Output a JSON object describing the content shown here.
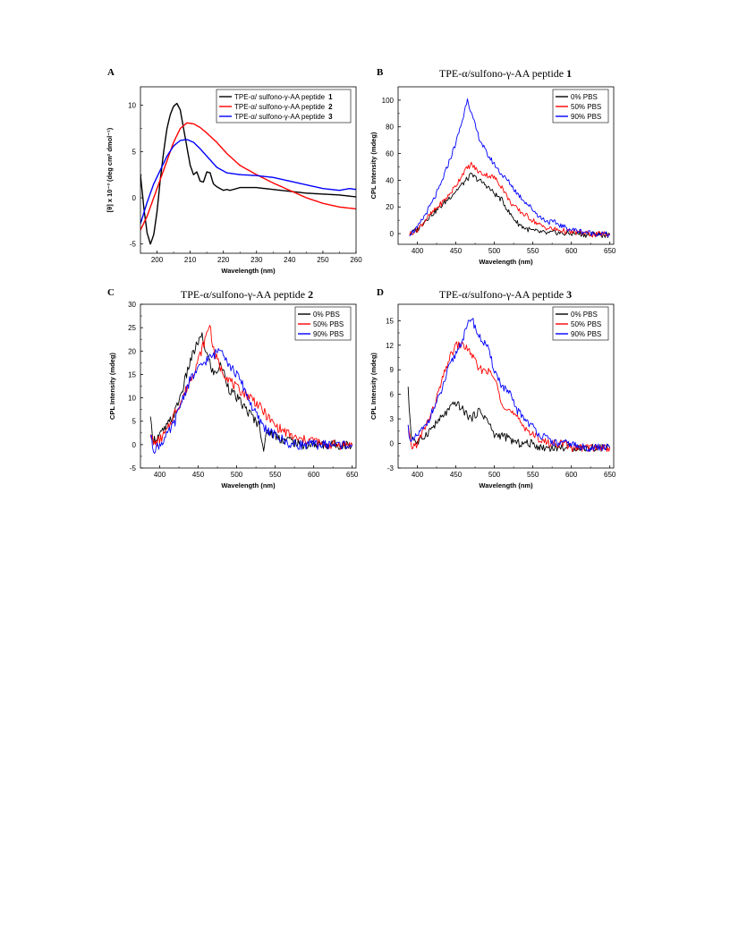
{
  "colors": {
    "black": "#000000",
    "red": "#ff0000",
    "blue": "#0000ff"
  },
  "chart_data": [
    {
      "panel": "A",
      "type": "line",
      "title": "",
      "xlabel": "Wavelength (nm)",
      "ylabel": "[θ] x 10⁻³ (deg cm² dmol⁻¹)",
      "xlim": [
        195,
        260
      ],
      "ylim": [
        -6,
        12
      ],
      "xticks": [
        200,
        210,
        220,
        230,
        240,
        250,
        260
      ],
      "yticks": [
        -5,
        0,
        5,
        10
      ],
      "legend_position": "top-right",
      "series": [
        {
          "name": "TPE-α/ sulfono-γ-AA peptide",
          "name_num": "1",
          "color": "#000000",
          "x": [
            195,
            196,
            197,
            198,
            199,
            200,
            201,
            202,
            203,
            204,
            205,
            206,
            207,
            208,
            209,
            210,
            211,
            212,
            213,
            214,
            215,
            216,
            217,
            218,
            219,
            220,
            221,
            222,
            225,
            230,
            235,
            240,
            245,
            250,
            255,
            260
          ],
          "y": [
            2.5,
            -1,
            -3.8,
            -5,
            -4,
            -1.5,
            2,
            5,
            7.5,
            9,
            9.9,
            10.2,
            9.5,
            7.5,
            5.5,
            3.5,
            2.5,
            2.8,
            1.8,
            1.7,
            2.8,
            2.7,
            1.5,
            1.2,
            1.0,
            0.8,
            0.9,
            0.8,
            1.1,
            1.1,
            0.9,
            0.7,
            0.5,
            0.4,
            0.3,
            0.1
          ]
        },
        {
          "name": "TPE-α/ sulfono-γ-AA peptide",
          "name_num": "2",
          "color": "#ff0000",
          "x": [
            195,
            197,
            199,
            201,
            203,
            205,
            207,
            209,
            211,
            213,
            215,
            218,
            221,
            225,
            230,
            235,
            240,
            245,
            250,
            255,
            260
          ],
          "y": [
            -3.5,
            -2,
            0,
            2,
            4,
            6,
            7.5,
            8.1,
            8.0,
            7.6,
            7.0,
            6.0,
            4.8,
            3.5,
            2.5,
            1.6,
            0.8,
            0,
            -0.6,
            -1.0,
            -1.2
          ]
        },
        {
          "name": "TPE-α/ sulfono-γ-AA peptide",
          "name_num": "3",
          "color": "#0000ff",
          "x": [
            195,
            197,
            199,
            201,
            203,
            205,
            207,
            209,
            211,
            213,
            215,
            218,
            221,
            225,
            230,
            235,
            240,
            245,
            250,
            255,
            258,
            260
          ],
          "y": [
            -2.8,
            -0.5,
            1.5,
            3,
            4.5,
            5.6,
            6.2,
            6.3,
            6.0,
            5.3,
            4.5,
            3.3,
            2.7,
            2.5,
            2.4,
            2.2,
            1.8,
            1.4,
            1.0,
            0.8,
            1.0,
            0.9
          ]
        }
      ]
    },
    {
      "panel": "B",
      "type": "line",
      "title": "TPE-α/sulfono-γ-AA peptide",
      "title_num": "1",
      "xlabel": "Wavelength (nm)",
      "ylabel": "CPL Intensity (mdeg)",
      "xlim": [
        375,
        655
      ],
      "ylim": [
        -8,
        110
      ],
      "xticks": [
        400,
        450,
        500,
        550,
        600,
        650
      ],
      "yticks": [
        0,
        20,
        40,
        60,
        80,
        100
      ],
      "legend_position": "top-right",
      "series": [
        {
          "name": "0% PBS",
          "color": "#000000",
          "x": [
            390,
            400,
            410,
            420,
            430,
            440,
            450,
            460,
            470,
            480,
            490,
            500,
            510,
            520,
            530,
            540,
            550,
            560,
            570,
            580,
            590,
            600,
            610,
            620,
            630,
            640,
            650
          ],
          "y": [
            0,
            3,
            10,
            15,
            20,
            26,
            32,
            38,
            44,
            40,
            36,
            30,
            25,
            15,
            8,
            4,
            2,
            1,
            0,
            1,
            0,
            0,
            0,
            -1,
            0,
            -1,
            -1
          ]
        },
        {
          "name": "50% PBS",
          "color": "#ff0000",
          "x": [
            390,
            400,
            410,
            420,
            430,
            440,
            450,
            460,
            470,
            480,
            490,
            500,
            510,
            520,
            530,
            540,
            550,
            560,
            570,
            580,
            590,
            600,
            610,
            620,
            630,
            640,
            650
          ],
          "y": [
            0,
            3,
            10,
            16,
            22,
            28,
            36,
            46,
            52,
            46,
            44,
            42,
            35,
            24,
            18,
            14,
            10,
            6,
            4,
            3,
            2,
            1,
            1,
            0,
            -1,
            0,
            -1
          ]
        },
        {
          "name": "90% PBS",
          "color": "#0000ff",
          "x": [
            390,
            400,
            410,
            420,
            430,
            440,
            450,
            460,
            465,
            470,
            480,
            490,
            500,
            510,
            520,
            530,
            540,
            550,
            560,
            570,
            580,
            590,
            600,
            610,
            620,
            630,
            640,
            650
          ],
          "y": [
            0,
            4,
            14,
            24,
            36,
            52,
            68,
            88,
            102,
            90,
            72,
            60,
            52,
            44,
            38,
            30,
            24,
            18,
            12,
            9,
            8,
            5,
            3,
            2,
            1,
            0,
            0,
            -1
          ]
        }
      ]
    },
    {
      "panel": "C",
      "type": "line",
      "title": "TPE-α/sulfono-γ-AA peptide",
      "title_num": "2",
      "xlabel": "Wavelength (nm)",
      "ylabel": "CPL Intensity (mdeg)",
      "xlim": [
        375,
        655
      ],
      "ylim": [
        -5,
        30
      ],
      "xticks": [
        400,
        450,
        500,
        550,
        600,
        650
      ],
      "yticks": [
        -5,
        0,
        5,
        10,
        15,
        20,
        25,
        30
      ],
      "legend_position": "top-right",
      "series": [
        {
          "name": "0% PBS",
          "color": "#000000",
          "x": [
            388,
            392,
            400,
            410,
            420,
            430,
            440,
            450,
            455,
            460,
            470,
            480,
            490,
            500,
            510,
            520,
            530,
            535,
            540,
            550,
            560,
            570,
            580,
            590,
            600,
            610,
            620,
            630,
            640,
            650
          ],
          "y": [
            5,
            1,
            2,
            4,
            7,
            12,
            18,
            22,
            23,
            20,
            15,
            17,
            12,
            10,
            8,
            6,
            4,
            -1,
            3,
            2,
            1,
            1,
            0,
            0,
            0,
            0,
            0,
            0,
            0,
            0
          ]
        },
        {
          "name": "50% PBS",
          "color": "#ff0000",
          "x": [
            388,
            392,
            400,
            410,
            420,
            430,
            440,
            450,
            460,
            465,
            470,
            480,
            490,
            500,
            510,
            520,
            530,
            540,
            550,
            560,
            570,
            580,
            590,
            600,
            610,
            620,
            630,
            640,
            650
          ],
          "y": [
            3,
            0,
            1,
            3,
            7,
            10,
            14,
            18,
            23,
            26,
            20,
            16,
            14,
            12,
            11,
            10,
            8,
            6,
            4,
            3,
            2,
            1,
            1,
            1,
            0,
            0,
            0,
            0,
            0
          ]
        },
        {
          "name": "90% PBS",
          "color": "#0000ff",
          "x": [
            388,
            392,
            400,
            410,
            420,
            430,
            440,
            450,
            460,
            470,
            480,
            490,
            500,
            510,
            520,
            530,
            540,
            550,
            560,
            570,
            580,
            590,
            600,
            610,
            620,
            630,
            640,
            650
          ],
          "y": [
            2,
            -1,
            0,
            2,
            5,
            10,
            14,
            16,
            18,
            19,
            21,
            17,
            15,
            12,
            8,
            5,
            3,
            2,
            1,
            0,
            0,
            0,
            0,
            0,
            0,
            0,
            0,
            0
          ]
        }
      ]
    },
    {
      "panel": "D",
      "type": "line",
      "title": "TPE-α/sulfono-γ-AA peptide",
      "title_num": "3",
      "xlabel": "Wavelength (nm)",
      "ylabel": "CPL Intensity (mdeg)",
      "xlim": [
        375,
        655
      ],
      "ylim": [
        -3,
        17
      ],
      "xticks": [
        400,
        450,
        500,
        550,
        600,
        650
      ],
      "yticks": [
        -3,
        0,
        3,
        6,
        9,
        12,
        15
      ],
      "legend_position": "top-right",
      "series": [
        {
          "name": "0% PBS",
          "color": "#000000",
          "x": [
            388,
            392,
            400,
            410,
            420,
            430,
            440,
            450,
            460,
            470,
            480,
            490,
            500,
            510,
            520,
            530,
            540,
            550,
            560,
            570,
            580,
            590,
            600,
            610,
            620,
            630,
            640,
            650
          ],
          "y": [
            6.5,
            1,
            0,
            1,
            2,
            3,
            4,
            5,
            4,
            3,
            4,
            3,
            1,
            1,
            0.5,
            0,
            0,
            0,
            -0.5,
            -0.5,
            -0.5,
            -0.5,
            -0.5,
            -0.5,
            -0.5,
            -0.5,
            -0.5,
            -0.5
          ]
        },
        {
          "name": "50% PBS",
          "color": "#ff0000",
          "x": [
            388,
            392,
            400,
            410,
            420,
            430,
            440,
            450,
            460,
            470,
            480,
            490,
            500,
            510,
            520,
            530,
            540,
            550,
            560,
            570,
            580,
            590,
            600,
            610,
            620,
            630,
            640,
            650
          ],
          "y": [
            2,
            -0.5,
            0,
            2,
            4,
            7,
            10,
            12,
            12,
            11,
            9,
            9,
            8,
            5,
            4,
            3,
            2,
            1,
            0.5,
            0,
            0,
            0,
            -0.5,
            -0.5,
            -0.5,
            -0.5,
            -0.5,
            -0.5
          ]
        },
        {
          "name": "90% PBS",
          "color": "#0000ff",
          "x": [
            388,
            392,
            400,
            410,
            420,
            430,
            440,
            450,
            460,
            470,
            480,
            490,
            500,
            510,
            520,
            530,
            540,
            550,
            560,
            570,
            580,
            590,
            600,
            610,
            620,
            630,
            640,
            650
          ],
          "y": [
            2,
            0,
            1,
            2,
            4,
            6,
            9,
            11,
            13,
            15.5,
            13,
            12,
            9,
            7,
            6,
            4,
            3,
            2,
            1,
            0.5,
            0,
            0,
            0,
            -0.5,
            -0.5,
            -0.5,
            -0.5,
            -0.5
          ]
        }
      ]
    }
  ]
}
